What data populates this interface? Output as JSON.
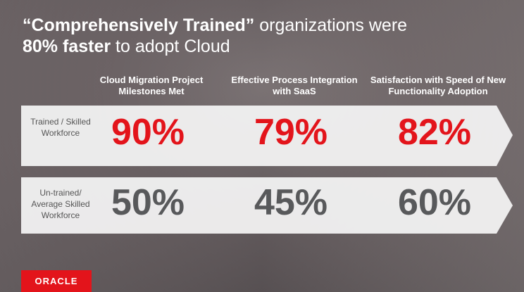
{
  "title": {
    "line1_bold": "“Comprehensively Trained”",
    "line1_rest": " organizations were",
    "line2_bold": "80% faster",
    "line2_rest": " to adopt Cloud"
  },
  "columns": [
    "Cloud Migration Project Milestones Met",
    "Effective Process Integration with SaaS",
    "Satisfaction with Speed of New Functionality Adoption"
  ],
  "rows": [
    {
      "label": "Trained / Skilled Workforce",
      "values": [
        "90%",
        "79%",
        "82%"
      ]
    },
    {
      "label": "Un-trained/ Average Skilled Workforce",
      "values": [
        "50%",
        "45%",
        "60%"
      ]
    }
  ],
  "logo": "ORACLE"
}
